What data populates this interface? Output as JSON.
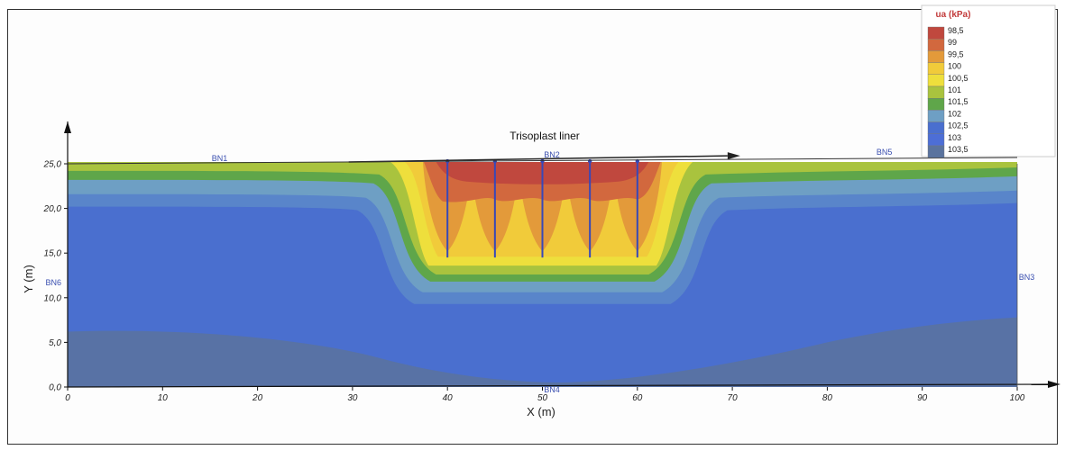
{
  "chart_data": {
    "type": "heatmap",
    "xlabel": "X (m)",
    "ylabel": "Y (m)",
    "xlim": [
      0,
      100
    ],
    "ylim": [
      0,
      25
    ],
    "x_ticks": [
      "0",
      "10",
      "20",
      "30",
      "40",
      "50",
      "60",
      "70",
      "80",
      "90",
      "100"
    ],
    "y_ticks": [
      "0,0",
      "5,0",
      "10,0",
      "15,0",
      "20,0",
      "25,0"
    ],
    "legend": {
      "title": "ua (kPa)",
      "placement": "top-right",
      "levels": [
        "98,5",
        "99",
        "99,5",
        "100",
        "100,5",
        "101",
        "101,5",
        "102",
        "102,5",
        "103",
        "103,5"
      ],
      "colors": [
        "#c0483e",
        "#d2683e",
        "#e39a3a",
        "#f1cb3a",
        "#eedf3c",
        "#a9c33e",
        "#5fa64a",
        "#6e9fc4",
        "#4a6fcf",
        "#4d6ed6",
        "#5a739e"
      ]
    },
    "annotation": "Trisoplast liner",
    "boundary_labels": [
      {
        "label": "BN1",
        "x": 16,
        "y": 25.3
      },
      {
        "label": "BN2",
        "x": 51,
        "y": 25.7
      },
      {
        "label": "BN3",
        "x": 101,
        "y": 12.0
      },
      {
        "label": "BN4",
        "x": 51,
        "y": -0.6
      },
      {
        "label": "BN5",
        "x": 86,
        "y": 26.0
      },
      {
        "label": "BN6",
        "x": -1.5,
        "y": 11.4
      }
    ],
    "wells_x": [
      40,
      45,
      50,
      55,
      60
    ],
    "well_bottom_y": 14.5,
    "well_top_y": 25.5
  }
}
